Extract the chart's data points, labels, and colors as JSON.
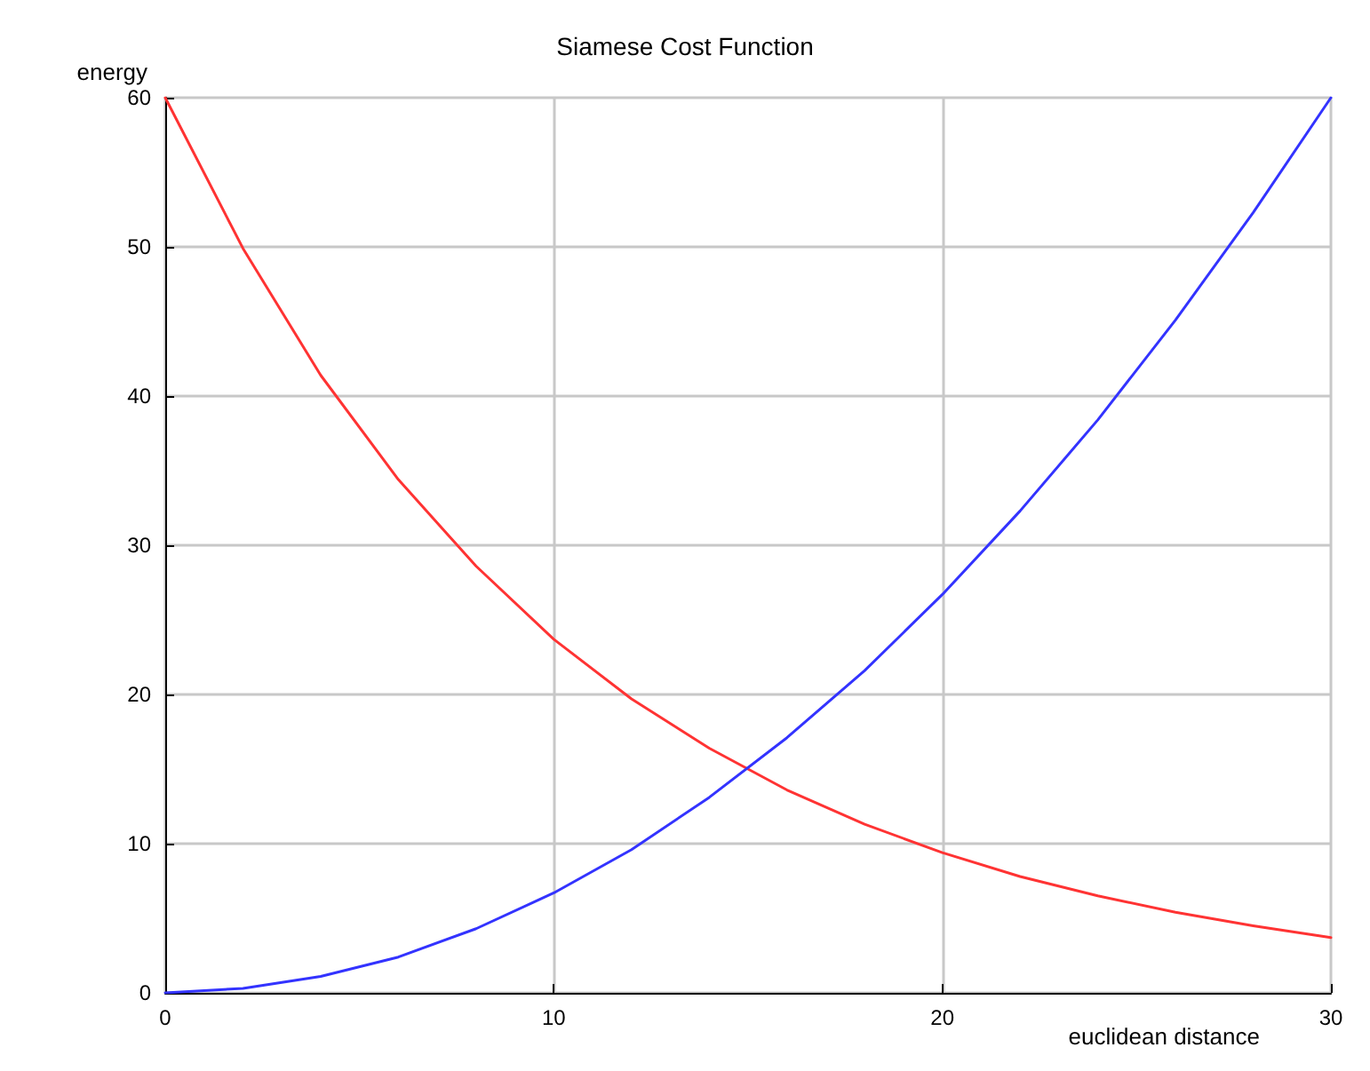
{
  "chart_data": {
    "type": "line",
    "title": "Siamese Cost Function",
    "xlabel": "euclidean distance",
    "ylabel": "energy",
    "x": [
      0,
      2,
      4,
      6,
      8,
      10,
      12,
      14,
      16,
      18,
      20,
      22,
      24,
      26,
      28,
      30
    ],
    "series": [
      {
        "color": "#ff3333",
        "values": [
          60,
          49.9,
          41.4,
          34.4,
          28.6,
          23.7,
          19.7,
          16.4,
          13.6,
          11.3,
          9.4,
          7.8,
          6.5,
          5.4,
          4.5,
          3.7
        ]
      },
      {
        "color": "#3333ff",
        "values": [
          0,
          0.3,
          1.1,
          2.4,
          4.3,
          6.7,
          9.6,
          13.1,
          17.1,
          21.6,
          26.7,
          32.3,
          38.4,
          45.1,
          52.3,
          60
        ]
      }
    ],
    "xlim": [
      0,
      30
    ],
    "xticks": [
      0,
      10,
      20,
      30
    ],
    "ylim": [
      0,
      60
    ],
    "yticks": [
      0,
      10,
      20,
      30,
      40,
      50,
      60
    ],
    "grid": true,
    "marker": "none",
    "line_style": "solid"
  }
}
